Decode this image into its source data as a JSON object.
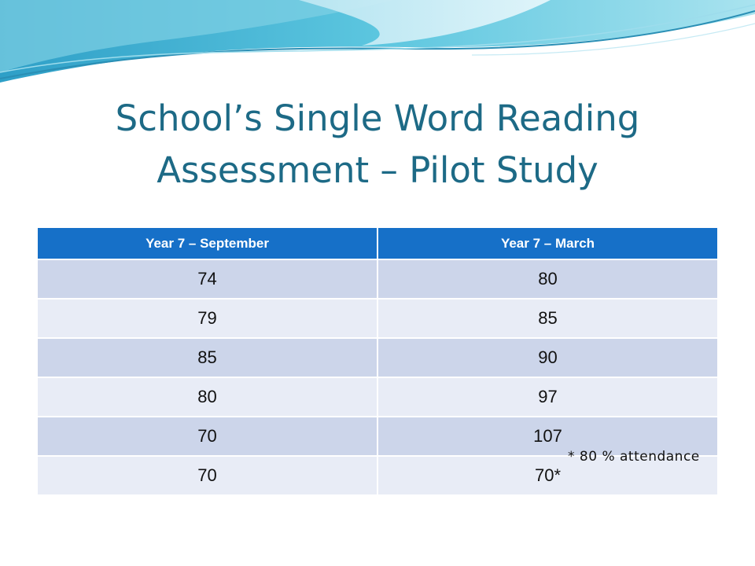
{
  "title": {
    "line1": "School’s Single Word Reading",
    "line2": "Assessment – Pilot Study"
  },
  "table": {
    "headers": [
      "Year 7 – September",
      "Year 7 – March"
    ],
    "rows": [
      [
        "74",
        "80"
      ],
      [
        "79",
        "85"
      ],
      [
        "85",
        "90"
      ],
      [
        "80",
        "97"
      ],
      [
        "70",
        "107"
      ],
      [
        "70",
        "70*"
      ]
    ]
  },
  "note": "* 80 % attendance",
  "colors": {
    "title": "#1d6a86",
    "header_bg": "#1670c8",
    "row_odd": "#ccd5ea",
    "row_even": "#e8ecf6"
  }
}
